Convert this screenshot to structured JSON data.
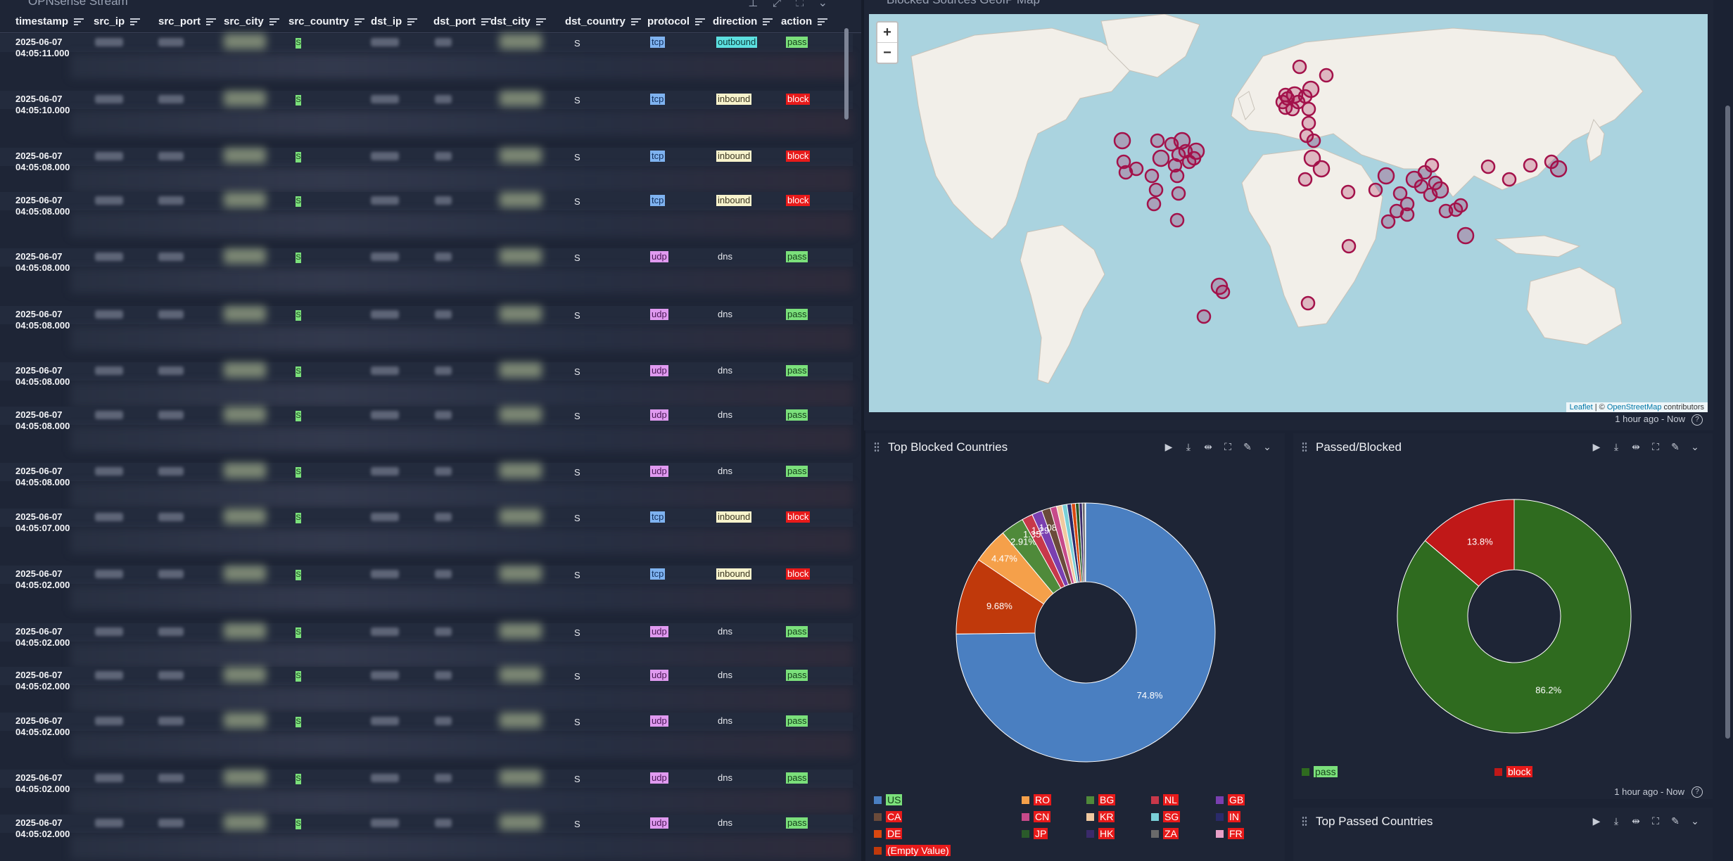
{
  "table": {
    "title": "OPNsense Stream",
    "columns": [
      "timestamp",
      "src_ip",
      "src_port",
      "src_city",
      "src_country",
      "dst_ip",
      "dst_port",
      "dst_city",
      "dst_country",
      "protocol",
      "direction",
      "action"
    ],
    "rows": [
      {
        "date": "2025-06-07",
        "time": "04:05:11.000",
        "dst_country": "S",
        "protocol": "tcp",
        "direction": "outbound",
        "action": "pass"
      },
      {
        "date": "2025-06-07",
        "time": "04:05:10.000",
        "dst_country": "S",
        "protocol": "tcp",
        "direction": "inbound",
        "action": "block"
      },
      {
        "date": "2025-06-07",
        "time": "04:05:08.000",
        "dst_country": "S",
        "protocol": "tcp",
        "direction": "inbound",
        "action": "block"
      },
      {
        "date": "2025-06-07",
        "time": "04:05:08.000",
        "dst_country": "S",
        "protocol": "tcp",
        "direction": "inbound",
        "action": "block"
      },
      {
        "date": "2025-06-07",
        "time": "04:05:08.000",
        "dst_country": "S",
        "protocol": "udp",
        "direction": "dns",
        "action": "pass"
      },
      {
        "date": "2025-06-07",
        "time": "04:05:08.000",
        "dst_country": "S",
        "protocol": "udp",
        "direction": "dns",
        "action": "pass"
      },
      {
        "date": "2025-06-07",
        "time": "04:05:08.000",
        "dst_country": "S",
        "protocol": "udp",
        "direction": "dns",
        "action": "pass"
      },
      {
        "date": "2025-06-07",
        "time": "04:05:08.000",
        "dst_country": "S",
        "protocol": "udp",
        "direction": "dns",
        "action": "pass"
      },
      {
        "date": "2025-06-07",
        "time": "04:05:08.000",
        "dst_country": "S",
        "protocol": "udp",
        "direction": "dns",
        "action": "pass"
      },
      {
        "date": "2025-06-07",
        "time": "04:05:07.000",
        "dst_country": "S",
        "protocol": "tcp",
        "direction": "inbound",
        "action": "block"
      },
      {
        "date": "2025-06-07",
        "time": "04:05:02.000",
        "dst_country": "S",
        "protocol": "tcp",
        "direction": "inbound",
        "action": "block"
      },
      {
        "date": "2025-06-07",
        "time": "04:05:02.000",
        "dst_country": "S",
        "protocol": "udp",
        "direction": "dns",
        "action": "pass"
      },
      {
        "date": "2025-06-07",
        "time": "04:05:02.000",
        "dst_country": "S",
        "protocol": "udp",
        "direction": "dns",
        "action": "pass"
      },
      {
        "date": "2025-06-07",
        "time": "04:05:02.000",
        "dst_country": "S",
        "protocol": "udp",
        "direction": "dns",
        "action": "pass"
      },
      {
        "date": "2025-06-07",
        "time": "04:05:02.000",
        "dst_country": "S",
        "protocol": "udp",
        "direction": "dns",
        "action": "pass"
      },
      {
        "date": "2025-06-07",
        "time": "04:05:02.000",
        "dst_country": "S",
        "protocol": "udp",
        "direction": "dns",
        "action": "pass"
      }
    ],
    "src_country_value": "S"
  },
  "map": {
    "title": "Blocked Sources GeoIP Map",
    "zoom_in": "+",
    "zoom_out": "−",
    "attribution_leaflet": "Leaflet",
    "attribution_sep": " | © ",
    "attribution_osm": "OpenStreetMap",
    "attribution_tail": " contributors",
    "time_range": "1 hour ago - Now",
    "help": "?",
    "marker_color": "#a3114a"
  },
  "blocked_countries": {
    "title": "Top Blocked Countries",
    "legend": [
      {
        "label": "US",
        "color": "#4a7fc1",
        "label_bg": "#7be07b",
        "label_fg": "#14401a"
      },
      {
        "label": "RO",
        "color": "#f5a04a",
        "label_bg": "#e81a1a",
        "label_fg": "#ffffff"
      },
      {
        "label": "BG",
        "color": "#4f8a3a",
        "label_bg": "#e81a1a",
        "label_fg": "#ffffff"
      },
      {
        "label": "NL",
        "color": "#c8384a",
        "label_bg": "#e81a1a",
        "label_fg": "#ffffff"
      },
      {
        "label": "GB",
        "color": "#7a3fb0",
        "label_bg": "#e81a1a",
        "label_fg": "#ffffff"
      },
      {
        "label": "CA",
        "color": "#6a4a3a",
        "label_bg": "#e81a1a",
        "label_fg": "#ffffff"
      },
      {
        "label": "CN",
        "color": "#c74a8a",
        "label_bg": "#e81a1a",
        "label_fg": "#ffffff"
      },
      {
        "label": "KR",
        "color": "#f0c9a0",
        "label_bg": "#e81a1a",
        "label_fg": "#ffffff"
      },
      {
        "label": "SG",
        "color": "#7ad0d8",
        "label_bg": "#e81a1a",
        "label_fg": "#ffffff"
      },
      {
        "label": "IN",
        "color": "#2a2a6a",
        "label_bg": "#e81a1a",
        "label_fg": "#ffffff"
      },
      {
        "label": "DE",
        "color": "#d9480f",
        "label_bg": "#e81a1a",
        "label_fg": "#ffffff"
      },
      {
        "label": "JP",
        "color": "#2a5a2a",
        "label_bg": "#e81a1a",
        "label_fg": "#ffffff"
      },
      {
        "label": "HK",
        "color": "#3a2a6a",
        "label_bg": "#e81a1a",
        "label_fg": "#ffffff"
      },
      {
        "label": "ZA",
        "color": "#6a6a6a",
        "label_bg": "#e81a1a",
        "label_fg": "#ffffff"
      },
      {
        "label": "FR",
        "color": "#e8a0c8",
        "label_bg": "#e81a1a",
        "label_fg": "#ffffff"
      },
      {
        "label": "(Empty Value)",
        "color": "#c0390b",
        "label_bg": "#e81a1a",
        "label_fg": "#ffffff"
      }
    ],
    "time_range": "1 hour ago - Now"
  },
  "passed_blocked": {
    "title": "Passed/Blocked",
    "legend": [
      {
        "label": "pass",
        "color": "#2f6b1f",
        "label_bg": "#7be07b",
        "label_fg": "#14401a"
      },
      {
        "label": "block",
        "color": "#c01818",
        "label_bg": "#e81a1a",
        "label_fg": "#ffffff"
      }
    ],
    "time_range": "1 hour ago - Now",
    "help": "?"
  },
  "passed_countries": {
    "title": "Top Passed Countries"
  },
  "chart_data": [
    {
      "type": "pie",
      "title": "Top Blocked Countries",
      "donut": true,
      "slices": [
        {
          "label": "US",
          "value": 74.8,
          "color": "#4a7fc1"
        },
        {
          "label": "(Empty Value)",
          "value": 9.68,
          "color": "#c0390b"
        },
        {
          "label": "RO",
          "value": 4.47,
          "color": "#f5a04a"
        },
        {
          "label": "BG",
          "value": 2.91,
          "color": "#4f8a3a"
        },
        {
          "label": "NL",
          "value": 1.35,
          "color": "#c8384a"
        },
        {
          "label": "GB",
          "value": 1.29,
          "color": "#7a3fb0"
        },
        {
          "label": "CA",
          "value": 1.08,
          "color": "#6a4a3a"
        },
        {
          "label": "CN",
          "value": 0.8,
          "color": "#c74a8a"
        },
        {
          "label": "KR",
          "value": 0.7,
          "color": "#f0c9a0"
        },
        {
          "label": "SG",
          "value": 0.6,
          "color": "#7ad0d8"
        },
        {
          "label": "IN",
          "value": 0.55,
          "color": "#2a2a6a"
        },
        {
          "label": "DE",
          "value": 0.5,
          "color": "#d9480f"
        },
        {
          "label": "JP",
          "value": 0.45,
          "color": "#2a5a2a"
        },
        {
          "label": "HK",
          "value": 0.4,
          "color": "#3a2a6a"
        },
        {
          "label": "ZA",
          "value": 0.35,
          "color": "#6a6a6a"
        },
        {
          "label": "FR",
          "value": 0.07,
          "color": "#e8a0c8"
        }
      ],
      "shown_labels": [
        "74.8%",
        "9.68%",
        "4.47%",
        "2.91%",
        "1.35%",
        "1.29%",
        "1.08%"
      ]
    },
    {
      "type": "pie",
      "title": "Passed/Blocked",
      "donut": true,
      "slices": [
        {
          "label": "pass",
          "value": 86.2,
          "color": "#2f6b1f"
        },
        {
          "label": "block",
          "value": 13.8,
          "color": "#c01818"
        }
      ],
      "shown_labels": [
        "86.2%",
        "13.8%"
      ]
    }
  ]
}
